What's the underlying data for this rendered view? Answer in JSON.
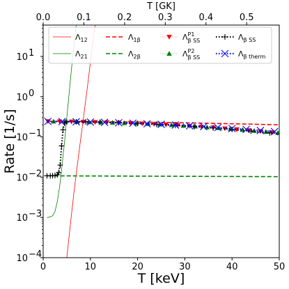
{
  "chart_data": {
    "type": "line",
    "xlabel": "T [keV]",
    "ylabel": "Rate [1/s]",
    "xlabel_top": "T [GK]",
    "xlim": [
      0,
      50
    ],
    "ylim": [
      0.0001,
      60
    ],
    "yscale": "log",
    "x_ticks": [
      0,
      10,
      20,
      30,
      40,
      50
    ],
    "x_tick_labels": [
      "0",
      "10",
      "20",
      "30",
      "40",
      "50"
    ],
    "x_top_ticks": [
      0.0,
      0.1,
      0.2,
      0.3,
      0.4,
      0.5
    ],
    "x_top_tick_labels": [
      "0.0",
      "0.1",
      "0.2",
      "0.3",
      "0.4",
      "0.5"
    ],
    "y_ticks": [
      0.0001,
      0.001,
      0.01,
      0.1,
      1,
      10
    ],
    "y_tick_labels": [
      "10",
      "10",
      "10",
      "10",
      "10",
      "10"
    ],
    "y_tick_exponents": [
      "−4",
      "−3",
      "−2",
      "−1",
      "0",
      "1"
    ],
    "legend_position": "top",
    "series": [
      {
        "name": "Λ",
        "name_sub": "12",
        "color": "#ff0000",
        "style": "solid",
        "width": 0.8,
        "x": [
          5.0,
          5.5,
          6.0,
          6.5,
          7.0,
          7.5,
          8.0,
          8.5,
          9.0,
          9.5,
          10.0,
          10.5,
          11.0
        ],
        "y": [
          0.0001,
          0.00035,
          0.0012,
          0.004,
          0.012,
          0.035,
          0.1,
          0.28,
          0.8,
          2.3,
          7,
          21,
          60
        ]
      },
      {
        "name": "Λ",
        "name_sub": "21",
        "color": "#008000",
        "style": "solid",
        "width": 0.8,
        "x": [
          0.8,
          1.0,
          1.2,
          1.5,
          2.0,
          2.5,
          3.0,
          3.5,
          4.0,
          4.5,
          5.0,
          5.5,
          6.0,
          6.5,
          7.0
        ],
        "y": [
          0.001,
          0.001,
          0.00101,
          0.00103,
          0.0011,
          0.0014,
          0.0025,
          0.006,
          0.02,
          0.07,
          0.3,
          1.2,
          5,
          18,
          60
        ]
      },
      {
        "name": "Λ",
        "name_sub": "1β",
        "color": "#ff0000",
        "style": "dashed",
        "width": 1.6,
        "x": [
          1,
          5,
          10,
          15,
          20,
          25,
          30,
          35,
          40,
          45,
          50
        ],
        "y": [
          0.245,
          0.243,
          0.241,
          0.238,
          0.234,
          0.229,
          0.224,
          0.218,
          0.212,
          0.206,
          0.2
        ]
      },
      {
        "name": "Λ",
        "name_sub": "2β",
        "color": "#008000",
        "style": "dashed",
        "width": 1.6,
        "x": [
          1,
          10,
          20,
          30,
          40,
          50
        ],
        "y": [
          0.0108,
          0.0107,
          0.0106,
          0.0105,
          0.0104,
          0.0103
        ]
      },
      {
        "name": "Λ",
        "name_sub": "β SS",
        "name_sup": "P1",
        "color": "#ff0000",
        "style": "markers",
        "marker": "triangle-down",
        "x": [
          1.0,
          3.5,
          6.0,
          8.5,
          11.0,
          13.5,
          16.0,
          18.5,
          21.0,
          23.5,
          26.0,
          28.5,
          31.0,
          33.5,
          36.0,
          38.5,
          41.0,
          43.5,
          46.0,
          48.5
        ],
        "y": [
          0.243,
          0.241,
          0.239,
          0.236,
          0.233,
          0.229,
          0.225,
          0.22,
          0.214,
          0.208,
          0.201,
          0.194,
          0.186,
          0.178,
          0.17,
          0.161,
          0.153,
          0.145,
          0.137,
          0.129
        ]
      },
      {
        "name": "Λ",
        "name_sub": "β SS",
        "name_sup": "P2",
        "color": "#008000",
        "style": "markers",
        "marker": "triangle-up",
        "x": [
          2.2,
          4.7,
          7.2,
          9.7,
          12.2,
          14.7,
          17.2,
          19.7,
          22.2,
          24.7,
          27.2,
          29.7,
          32.2,
          34.7,
          37.2,
          39.7,
          42.2,
          44.7,
          47.2,
          49.7
        ],
        "y": [
          0.242,
          0.24,
          0.237,
          0.234,
          0.231,
          0.227,
          0.222,
          0.217,
          0.211,
          0.205,
          0.198,
          0.19,
          0.182,
          0.174,
          0.166,
          0.158,
          0.15,
          0.142,
          0.134,
          0.126
        ]
      },
      {
        "name": "Λ",
        "name_sub": "β SS",
        "color": "#000000",
        "style": "dotted",
        "marker": "plus",
        "width": 2.2,
        "x": [
          0.8,
          1.5,
          2.0,
          2.5,
          3.0,
          3.3,
          3.6,
          3.9,
          4.2,
          4.5,
          5.0,
          6.0,
          7.0,
          8.0,
          9.0,
          10,
          12,
          14,
          16,
          18,
          20,
          22,
          24,
          26,
          28,
          30,
          32,
          34,
          36,
          38,
          40,
          42,
          44,
          46,
          48,
          50
        ],
        "y": [
          0.0108,
          0.0108,
          0.0109,
          0.011,
          0.0115,
          0.013,
          0.02,
          0.06,
          0.15,
          0.22,
          0.237,
          0.239,
          0.238,
          0.237,
          0.236,
          0.235,
          0.232,
          0.229,
          0.225,
          0.221,
          0.216,
          0.211,
          0.205,
          0.199,
          0.193,
          0.187,
          0.18,
          0.174,
          0.167,
          0.16,
          0.153,
          0.146,
          0.139,
          0.132,
          0.126,
          0.12
        ]
      },
      {
        "name": "Λ",
        "name_sub": "β therm",
        "color": "#0000ff",
        "style": "dotted",
        "marker": "x",
        "width": 2.2,
        "x": [
          1,
          4,
          7,
          10,
          13,
          16,
          19,
          22,
          25,
          28,
          31,
          34,
          37,
          40,
          43,
          46,
          49
        ],
        "y": [
          0.242,
          0.24,
          0.237,
          0.234,
          0.23,
          0.225,
          0.219,
          0.212,
          0.205,
          0.197,
          0.189,
          0.18,
          0.171,
          0.162,
          0.153,
          0.144,
          0.135
        ]
      }
    ]
  }
}
